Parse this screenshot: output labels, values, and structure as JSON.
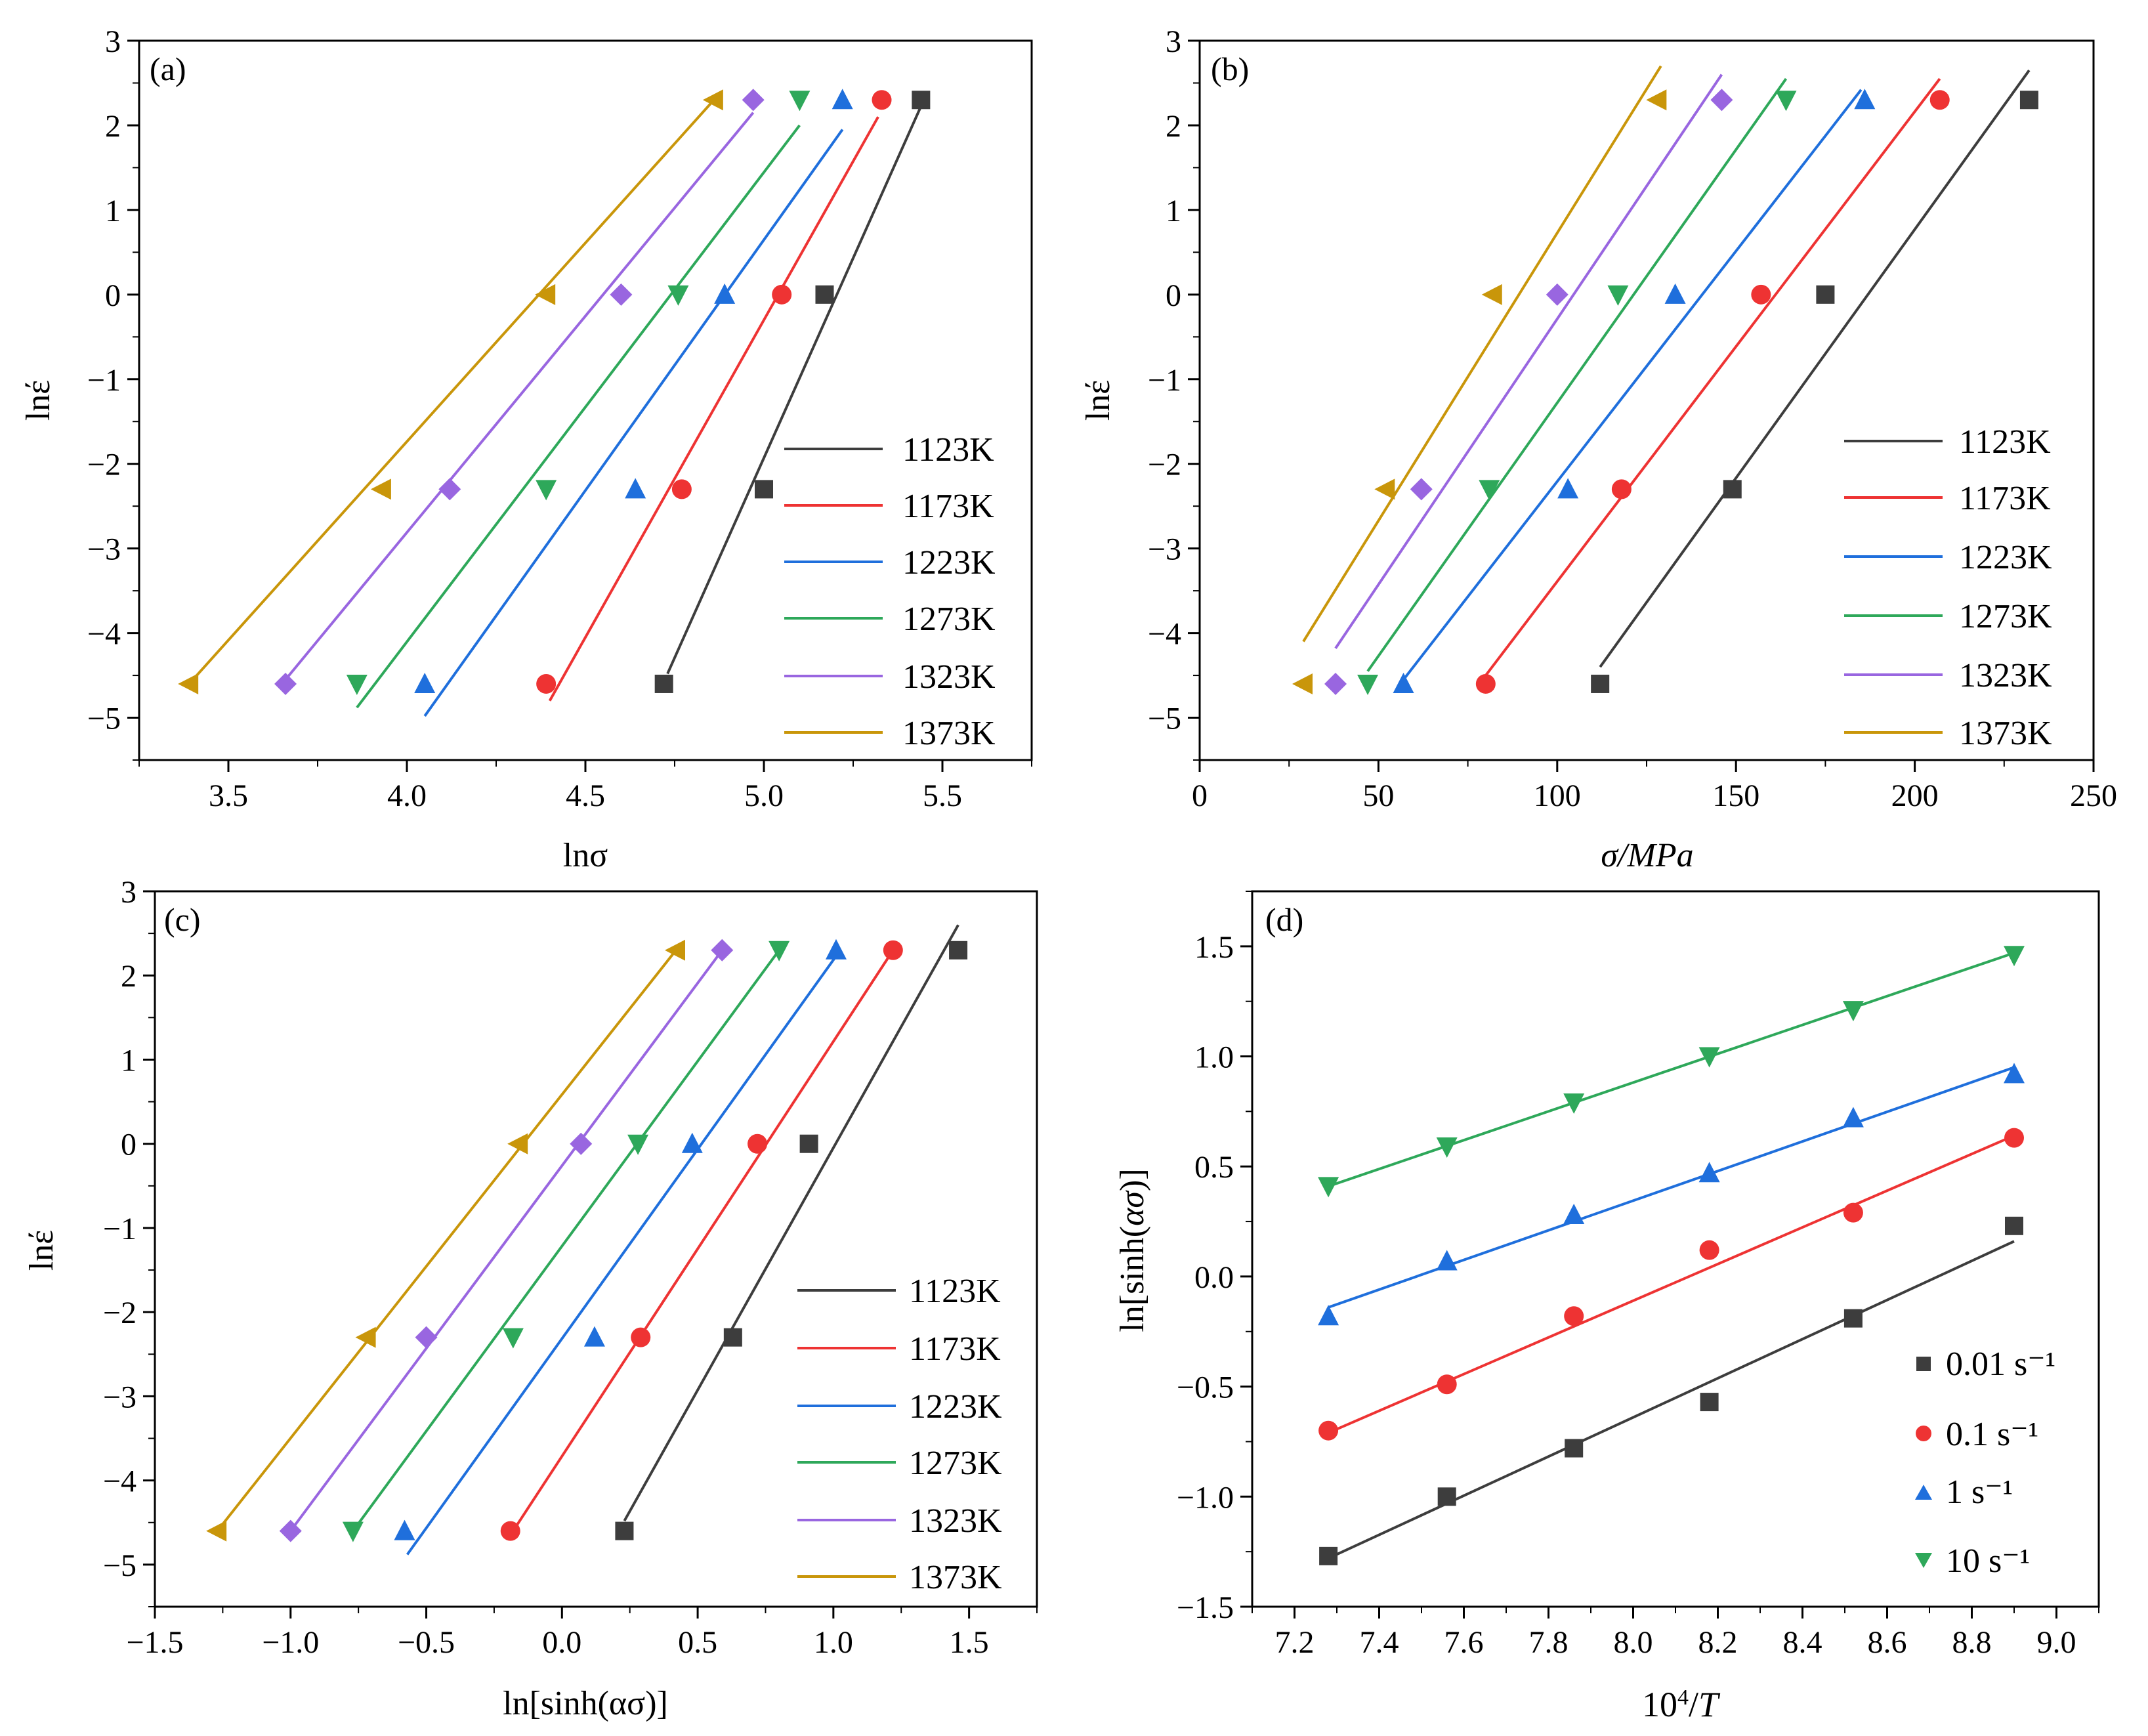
{
  "colors": {
    "1123K": "#3d3d3d",
    "1173K": "#ee3333",
    "1223K": "#1f6fdc",
    "1273K": "#2ea85a",
    "1323K": "#9966e0",
    "1373K": "#c9960a",
    "0.01": "#3d3d3d",
    "0.1": "#ee3333",
    "1": "#1f6fdc",
    "10": "#2ea85a"
  },
  "chart_data": [
    {
      "panel": "(a)",
      "type": "scatter",
      "xlabel": "lnσ",
      "ylabel": "lnέ",
      "xlim": [
        3.25,
        5.75
      ],
      "ylim": [
        -5.5,
        3
      ],
      "xticks": [
        3.5,
        4.0,
        4.5,
        5.0,
        5.5
      ],
      "xtick_labels": [
        "3.5",
        "4.0",
        "4.5",
        "5.0",
        "5.5"
      ],
      "yticks": [
        -5,
        -4,
        -3,
        -2,
        -1,
        0,
        1,
        2,
        3
      ],
      "ytick_labels": [
        "−5",
        "−4",
        "−3",
        "−2",
        "−1",
        "0",
        "1",
        "2",
        "3"
      ],
      "legend": "right",
      "series": [
        {
          "name": "1123K",
          "marker": "square",
          "x": [
            4.72,
            5.0,
            5.17,
            5.44
          ],
          "y": [
            -4.6,
            -2.3,
            0,
            2.3
          ],
          "fit": [
            [
              4.73,
              -4.48
            ],
            [
              5.45,
              2.32
            ]
          ]
        },
        {
          "name": "1173K",
          "marker": "circle",
          "x": [
            4.39,
            4.77,
            5.05,
            5.33
          ],
          "y": [
            -4.6,
            -2.3,
            0,
            2.3
          ],
          "fit": [
            [
              4.4,
              -4.8
            ],
            [
              5.32,
              2.1
            ]
          ]
        },
        {
          "name": "1223K",
          "marker": "triangle-up",
          "x": [
            4.05,
            4.64,
            4.89,
            5.22
          ],
          "y": [
            -4.6,
            -2.3,
            0,
            2.3
          ],
          "fit": [
            [
              4.05,
              -4.98
            ],
            [
              5.22,
              1.95
            ]
          ]
        },
        {
          "name": "1273K",
          "marker": "triangle-down",
          "x": [
            3.86,
            4.39,
            4.76,
            5.1
          ],
          "y": [
            -4.6,
            -2.3,
            0,
            2.3
          ],
          "fit": [
            [
              3.86,
              -4.88
            ],
            [
              5.1,
              2.0
            ]
          ]
        },
        {
          "name": "1323K",
          "marker": "diamond",
          "x": [
            3.66,
            4.12,
            4.6,
            4.97
          ],
          "y": [
            -4.6,
            -2.3,
            0,
            2.3
          ],
          "fit": [
            [
              3.66,
              -4.55
            ],
            [
              4.97,
              2.15
            ]
          ]
        },
        {
          "name": "1373K",
          "marker": "triangle-left",
          "x": [
            3.39,
            3.93,
            4.39,
            4.86
          ],
          "y": [
            -4.6,
            -2.3,
            0,
            2.3
          ],
          "fit": [
            [
              3.39,
              -4.6
            ],
            [
              4.86,
              2.3
            ]
          ]
        }
      ]
    },
    {
      "panel": "(b)",
      "type": "scatter",
      "xlabel": "σ/MPa",
      "ylabel": "lnέ",
      "xlim": [
        0,
        250
      ],
      "ylim": [
        -5.5,
        3
      ],
      "xticks": [
        0,
        50,
        100,
        150,
        200,
        250
      ],
      "xtick_labels": [
        "0",
        "50",
        "100",
        "150",
        "200",
        "250"
      ],
      "yticks": [
        -5,
        -4,
        -3,
        -2,
        -1,
        0,
        1,
        2,
        3
      ],
      "ytick_labels": [
        "−5",
        "−4",
        "−3",
        "−2",
        "−1",
        "0",
        "1",
        "2",
        "3"
      ],
      "legend": "right",
      "series": [
        {
          "name": "1123K",
          "marker": "square",
          "x": [
            112,
            149,
            175,
            232
          ],
          "y": [
            -4.6,
            -2.3,
            0,
            2.3
          ],
          "fit": [
            [
              112,
              -4.4
            ],
            [
              232,
              2.65
            ]
          ]
        },
        {
          "name": "1173K",
          "marker": "circle",
          "x": [
            80,
            118,
            157,
            207
          ],
          "y": [
            -4.6,
            -2.3,
            0,
            2.3
          ],
          "fit": [
            [
              80,
              -4.5
            ],
            [
              207,
              2.55
            ]
          ]
        },
        {
          "name": "1223K",
          "marker": "triangle-up",
          "x": [
            57,
            103,
            133,
            186
          ],
          "y": [
            -4.6,
            -2.3,
            0,
            2.3
          ],
          "fit": [
            [
              57,
              -4.55
            ],
            [
              185,
              2.42
            ]
          ]
        },
        {
          "name": "1273K",
          "marker": "triangle-down",
          "x": [
            47,
            81,
            117,
            164
          ],
          "y": [
            -4.6,
            -2.3,
            0,
            2.3
          ],
          "fit": [
            [
              47,
              -4.45
            ],
            [
              164,
              2.55
            ]
          ]
        },
        {
          "name": "1323K",
          "marker": "diamond",
          "x": [
            38,
            62,
            100,
            146
          ],
          "y": [
            -4.6,
            -2.3,
            0,
            2.3
          ],
          "fit": [
            [
              38,
              -4.18
            ],
            [
              146,
              2.6
            ]
          ]
        },
        {
          "name": "1373K",
          "marker": "triangle-left",
          "x": [
            29,
            52,
            82,
            128
          ],
          "y": [
            -4.6,
            -2.3,
            0,
            2.3
          ],
          "fit": [
            [
              29,
              -4.1
            ],
            [
              129,
              2.7
            ]
          ]
        }
      ]
    },
    {
      "panel": "(c)",
      "type": "scatter",
      "xlabel": "ln[sinh(ασ)]",
      "ylabel": "lnέ",
      "xlim": [
        -1.5,
        1.75
      ],
      "ylim": [
        -5.5,
        3
      ],
      "xticks": [
        -1.5,
        -1.0,
        -0.5,
        0.0,
        0.5,
        1.0,
        1.5
      ],
      "xtick_labels": [
        "−1.5",
        "−1.0",
        "−0.5",
        "0.0",
        "0.5",
        "1.0",
        "1.5"
      ],
      "yticks": [
        -5,
        -4,
        -3,
        -2,
        -1,
        0,
        1,
        2,
        3
      ],
      "ytick_labels": [
        "−5",
        "−4",
        "−3",
        "−2",
        "−1",
        "0",
        "1",
        "2",
        "3"
      ],
      "legend": "right",
      "series": [
        {
          "name": "1123K",
          "marker": "square",
          "x": [
            0.23,
            0.63,
            0.91,
            1.46
          ],
          "y": [
            -4.6,
            -2.3,
            0,
            2.3
          ],
          "fit": [
            [
              0.23,
              -4.48
            ],
            [
              1.46,
              2.6
            ]
          ]
        },
        {
          "name": "1173K",
          "marker": "circle",
          "x": [
            -0.19,
            0.29,
            0.72,
            1.22
          ],
          "y": [
            -4.6,
            -2.3,
            0,
            2.3
          ],
          "fit": [
            [
              -0.17,
              -4.55
            ],
            [
              1.22,
              2.3
            ]
          ]
        },
        {
          "name": "1223K",
          "marker": "triangle-up",
          "x": [
            -0.58,
            0.12,
            0.48,
            1.01
          ],
          "y": [
            -4.6,
            -2.3,
            0,
            2.3
          ],
          "fit": [
            [
              -0.57,
              -4.88
            ],
            [
              1.01,
              2.23
            ]
          ]
        },
        {
          "name": "1273K",
          "marker": "triangle-down",
          "x": [
            -0.77,
            -0.18,
            0.28,
            0.8
          ],
          "y": [
            -4.6,
            -2.3,
            0,
            2.3
          ],
          "fit": [
            [
              -0.77,
              -4.6
            ],
            [
              0.8,
              2.3
            ]
          ]
        },
        {
          "name": "1323K",
          "marker": "diamond",
          "x": [
            -1.0,
            -0.5,
            0.07,
            0.59
          ],
          "y": [
            -4.6,
            -2.3,
            0,
            2.3
          ],
          "fit": [
            [
              -1.0,
              -4.6
            ],
            [
              0.59,
              2.3
            ]
          ]
        },
        {
          "name": "1373K",
          "marker": "triangle-left",
          "x": [
            -1.27,
            -0.72,
            -0.16,
            0.42
          ],
          "y": [
            -4.6,
            -2.3,
            0,
            2.3
          ],
          "fit": [
            [
              -1.27,
              -4.6
            ],
            [
              0.42,
              2.3
            ]
          ]
        }
      ]
    },
    {
      "panel": "(d)",
      "type": "scatter",
      "xlabel": "10⁴/T",
      "ylabel": "ln[sinh(ασ)]",
      "xlim": [
        7.1,
        9.1
      ],
      "ylim": [
        -1.5,
        1.75
      ],
      "xticks": [
        7.2,
        7.4,
        7.6,
        7.8,
        8.0,
        8.2,
        8.4,
        8.6,
        8.8,
        9.0
      ],
      "xtick_labels": [
        "7.2",
        "7.4",
        "7.6",
        "7.8",
        "8.0",
        "8.2",
        "8.4",
        "8.6",
        "8.8",
        "9.0"
      ],
      "yticks": [
        -1.5,
        -1.0,
        -0.5,
        0.0,
        0.5,
        1.0,
        1.5
      ],
      "ytick_labels": [
        "−1.5",
        "−1.0",
        "−0.5",
        "0.0",
        "0.5",
        "1.0",
        "1.5"
      ],
      "legend": "right",
      "series": [
        {
          "name": "0.01 s⁻¹",
          "key": "0.01",
          "marker": "square",
          "x": [
            7.28,
            7.56,
            7.86,
            8.18,
            8.52,
            8.9
          ],
          "y": [
            -1.27,
            -1.0,
            -0.78,
            -0.57,
            -0.19,
            0.23
          ],
          "fit": [
            [
              7.28,
              -1.28
            ],
            [
              8.9,
              0.16
            ]
          ]
        },
        {
          "name": "0.1 s⁻¹",
          "key": "0.1",
          "marker": "circle",
          "x": [
            7.28,
            7.56,
            7.86,
            8.18,
            8.52,
            8.9
          ],
          "y": [
            -0.7,
            -0.49,
            -0.18,
            0.12,
            0.29,
            0.63
          ],
          "fit": [
            [
              7.28,
              -0.71
            ],
            [
              8.9,
              0.64
            ]
          ]
        },
        {
          "name": "1 s⁻¹",
          "key": "1",
          "marker": "triangle-up",
          "x": [
            7.28,
            7.56,
            7.86,
            8.18,
            8.52,
            8.9
          ],
          "y": [
            -0.18,
            0.07,
            0.28,
            0.47,
            0.72,
            0.92
          ],
          "fit": [
            [
              7.28,
              -0.14
            ],
            [
              8.9,
              0.95
            ]
          ]
        },
        {
          "name": "10 s⁻¹",
          "key": "10",
          "marker": "triangle-down",
          "x": [
            7.28,
            7.56,
            7.86,
            8.18,
            8.52,
            8.9
          ],
          "y": [
            0.41,
            0.59,
            0.79,
            1.0,
            1.21,
            1.46
          ],
          "fit": [
            [
              7.28,
              0.41
            ],
            [
              8.9,
              1.47
            ]
          ]
        }
      ]
    }
  ]
}
